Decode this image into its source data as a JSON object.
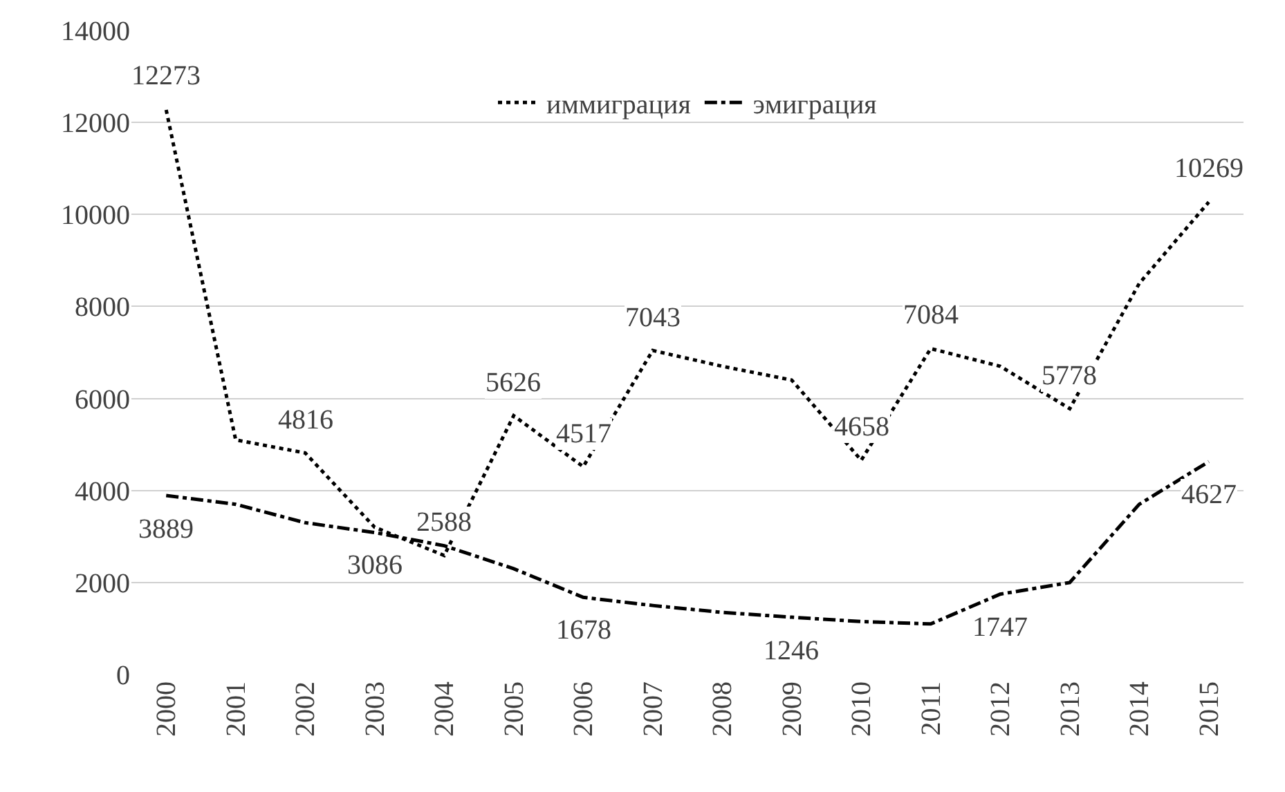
{
  "chart_data": {
    "type": "line",
    "categories": [
      "2000",
      "2001",
      "2002",
      "2003",
      "2004",
      "2005",
      "2006",
      "2007",
      "2008",
      "2009",
      "2010",
      "2011",
      "2012",
      "2013",
      "2014",
      "2015"
    ],
    "series": [
      {
        "name": "иммиграция",
        "color": "#000000",
        "line_style": "dotted",
        "values": [
          12273,
          5100,
          4816,
          3200,
          2588,
          5626,
          4517,
          7043,
          6700,
          6400,
          4658,
          7084,
          6700,
          5778,
          8500,
          10269
        ],
        "value_labels": [
          "12273",
          null,
          "4816",
          null,
          "2588",
          "5626",
          "4517",
          "7043",
          null,
          null,
          "4658",
          "7084",
          null,
          "5778",
          null,
          "10269"
        ]
      },
      {
        "name": "эмиграция",
        "color": "#000000",
        "line_style": "dashdot",
        "values": [
          3889,
          3700,
          3300,
          3086,
          2800,
          2300,
          1678,
          1500,
          1350,
          1246,
          1150,
          1100,
          1747,
          2000,
          3700,
          4627
        ],
        "value_labels": [
          "3889",
          null,
          null,
          "3086",
          null,
          null,
          "1678",
          null,
          null,
          "1246",
          null,
          null,
          "1747",
          null,
          null,
          "4627"
        ]
      }
    ],
    "ylim": [
      0,
      14000
    ],
    "yticks": [
      0,
      2000,
      4000,
      6000,
      8000,
      10000,
      12000,
      14000
    ],
    "grid": "y",
    "legend": "top",
    "marker": "none"
  }
}
